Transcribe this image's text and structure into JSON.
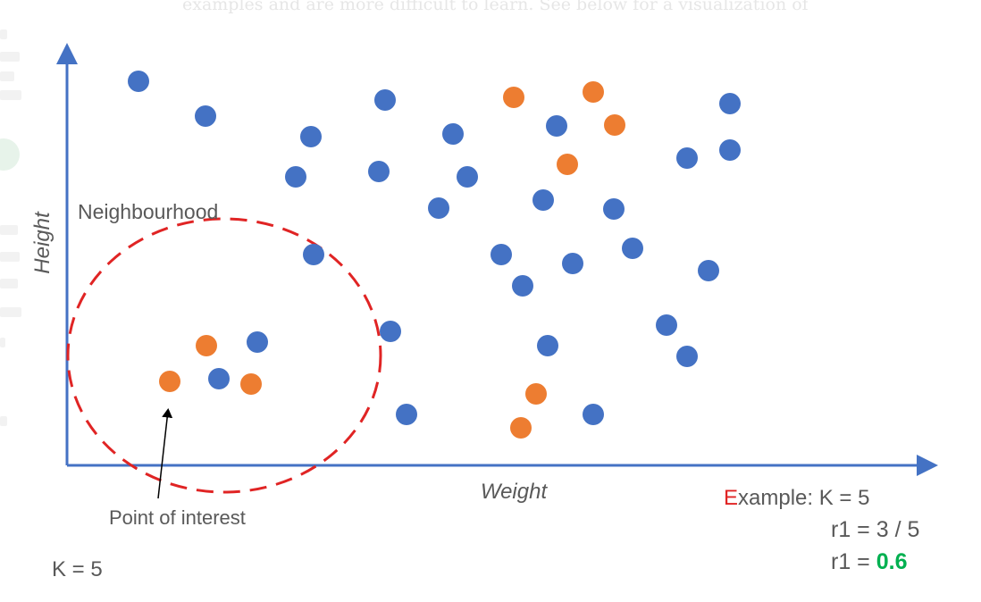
{
  "background_text": "examples and are more difficult to learn. See below for a visualization of",
  "labels": {
    "y_axis": "Height",
    "x_axis": "Weight",
    "neighbourhood": "Neighbourhood",
    "point_of_interest": "Point of interest",
    "k_value": "K = 5"
  },
  "example": {
    "first_letter": "E",
    "rest": "xample: K = 5",
    "line2": "r1 = 3 / 5",
    "line3_prefix": "r1 = ",
    "line3_value": "0.6"
  },
  "colors": {
    "blue": "#4472c4",
    "orange": "#ed7d31",
    "red": "#e02424",
    "green": "#00b050",
    "axis": "#4472c4",
    "text": "#595959"
  },
  "blue_points": [
    [
      155,
      91
    ],
    [
      230,
      130
    ],
    [
      431,
      112
    ],
    [
      348,
      153
    ],
    [
      507,
      150
    ],
    [
      623,
      141
    ],
    [
      817,
      116
    ],
    [
      331,
      198
    ],
    [
      424,
      192
    ],
    [
      523,
      198
    ],
    [
      769,
      177
    ],
    [
      817,
      168
    ],
    [
      491,
      233
    ],
    [
      608,
      224
    ],
    [
      687,
      234
    ],
    [
      351,
      285
    ],
    [
      561,
      285
    ],
    [
      641,
      295
    ],
    [
      708,
      278
    ],
    [
      585,
      320
    ],
    [
      793,
      303
    ],
    [
      288,
      383
    ],
    [
      245,
      424
    ],
    [
      437,
      371
    ],
    [
      613,
      387
    ],
    [
      746,
      364
    ],
    [
      769,
      399
    ],
    [
      455,
      464
    ],
    [
      664,
      464
    ]
  ],
  "orange_points": [
    [
      575,
      109
    ],
    [
      664,
      103
    ],
    [
      688,
      140
    ],
    [
      635,
      184
    ],
    [
      231,
      387
    ],
    [
      190,
      427
    ],
    [
      281,
      430
    ],
    [
      600,
      441
    ],
    [
      583,
      479
    ]
  ]
}
